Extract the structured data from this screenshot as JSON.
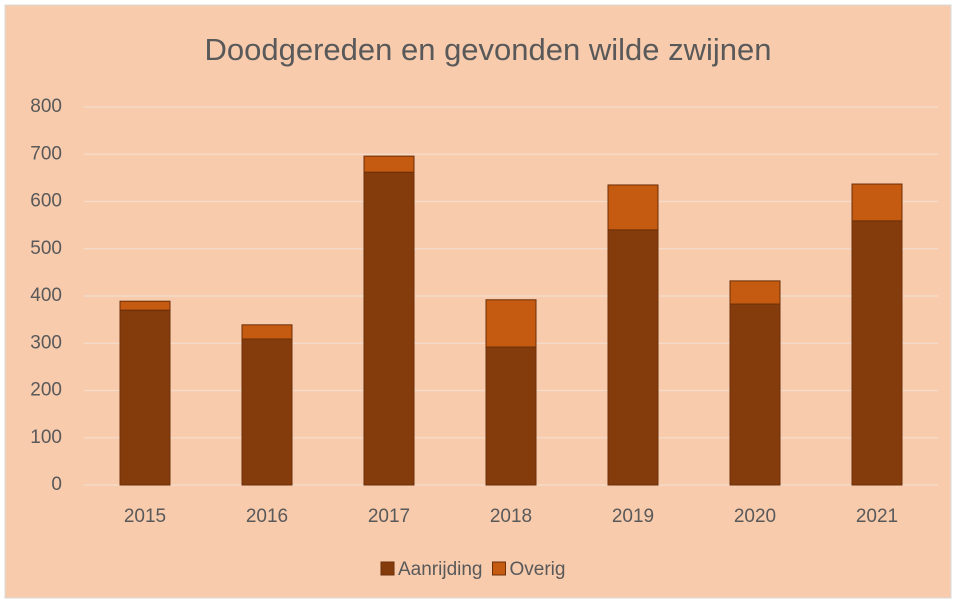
{
  "chart_data": {
    "type": "bar",
    "stacked": true,
    "title": "Doodgereden en gevonden wilde zwijnen",
    "categories": [
      "2015",
      "2016",
      "2017",
      "2018",
      "2019",
      "2020",
      "2021"
    ],
    "series": [
      {
        "name": "Aanrijding",
        "color": "#843c0c",
        "values": [
          370,
          309,
          662,
          292,
          540,
          383,
          559
        ]
      },
      {
        "name": "Overig",
        "color": "#c55a11",
        "values": [
          19,
          30,
          34,
          100,
          95,
          49,
          78
        ]
      }
    ],
    "ylim": [
      0,
      800
    ],
    "yticks": [
      0,
      100,
      200,
      300,
      400,
      500,
      600,
      700,
      800
    ],
    "grid": true,
    "legend": "bottom",
    "background": "#f8cbad"
  }
}
